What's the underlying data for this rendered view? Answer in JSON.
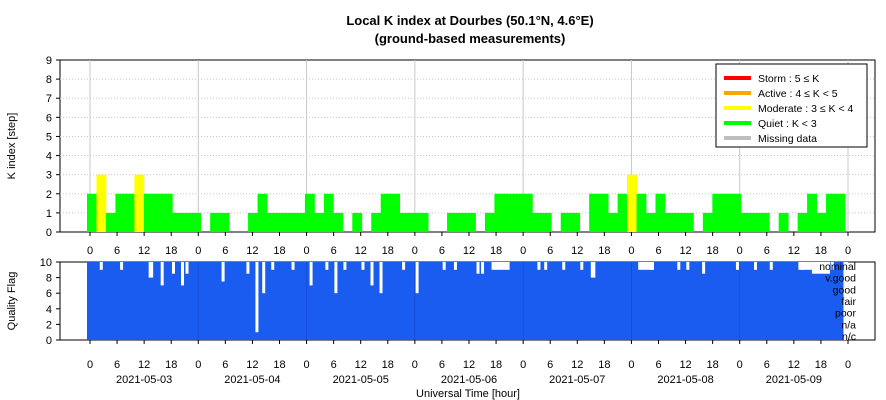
{
  "chart_data": [
    {
      "type": "bar",
      "title": "Local K index at Dourbes (50.1°N, 4.6°E)",
      "subtitle": "(ground-based measurements)",
      "ylabel": "K index [step]",
      "ylim": [
        0,
        9
      ],
      "yticks": [
        "0",
        "1",
        "2",
        "3",
        "4",
        "5",
        "6",
        "7",
        "8",
        "9"
      ],
      "grid": true,
      "legend_position": "top-right",
      "x_unit_hours": [
        0,
        168
      ],
      "legend": [
        {
          "label": "Storm : 5 ≤ K",
          "color": "#ff0000"
        },
        {
          "label": "Active : 4 ≤ K < 5",
          "color": "#ffa500"
        },
        {
          "label": "Moderate : 3 ≤ K < 4",
          "color": "#ffff00"
        },
        {
          "label": "Quiet : K < 3",
          "color": "#00ff00"
        },
        {
          "label": "Missing data",
          "color": "#bebebe"
        }
      ],
      "x_hour_ticks": [
        "0",
        "6",
        "12",
        "18",
        "0",
        "6",
        "12",
        "18",
        "0",
        "6",
        "12",
        "18",
        "0",
        "6",
        "12",
        "18",
        "0",
        "6",
        "12",
        "18",
        "0",
        "6",
        "12",
        "18",
        "0",
        "6",
        "12",
        "18",
        "0"
      ],
      "values": [
        2,
        3,
        1,
        2,
        2,
        3,
        2,
        2,
        2,
        1,
        1,
        1,
        0,
        1,
        1,
        0,
        0,
        1,
        2,
        1,
        1,
        1,
        1,
        2,
        1,
        2,
        1,
        0,
        1,
        0,
        1,
        2,
        2,
        1,
        1,
        1,
        0,
        0,
        1,
        1,
        1,
        0,
        1,
        2,
        2,
        2,
        2,
        1,
        1,
        0,
        1,
        1,
        0,
        2,
        2,
        1,
        2,
        3,
        2,
        1,
        2,
        1,
        1,
        1,
        0,
        1,
        2,
        2,
        2,
        1,
        1,
        1,
        0,
        1,
        0,
        1,
        2,
        1,
        2,
        2
      ],
      "step_hours": 2.1
    },
    {
      "type": "bar",
      "ylabel": "Quality Flag",
      "ylim": [
        0,
        10
      ],
      "yticks": [
        "0",
        "2",
        "4",
        "6",
        "8",
        "10"
      ],
      "xlabel": "Universal Time [hour]",
      "bar_color": "#1a5cf0",
      "quality_labels": [
        "nominal",
        "v.good",
        "good",
        "fair",
        "poor",
        "n/a",
        "n/c"
      ],
      "x_hour_ticks": [
        "0",
        "6",
        "12",
        "18",
        "0",
        "6",
        "12",
        "18",
        "0",
        "6",
        "12",
        "18",
        "0",
        "6",
        "12",
        "18",
        "0",
        "6",
        "12",
        "18",
        "0",
        "6",
        "12",
        "18",
        "0",
        "6",
        "12",
        "18",
        "0"
      ],
      "date_labels": [
        "2021-05-03",
        "2021-05-04",
        "2021-05-05",
        "2021-05-06",
        "2021-05-07",
        "2021-05-08",
        "2021-05-09"
      ],
      "dips": [
        {
          "hour": 2.5,
          "value": 9
        },
        {
          "hour": 7.0,
          "value": 9
        },
        {
          "hour": 13.5,
          "value": 8.5
        },
        {
          "hour": 16.0,
          "value": 7
        },
        {
          "hour": 18.5,
          "value": 8.5
        },
        {
          "hour": 20.5,
          "value": 7
        },
        {
          "hour": 21.5,
          "value": 8.5
        },
        {
          "hour": 29.5,
          "value": 7.5
        },
        {
          "hour": 35.0,
          "value": 8.5
        },
        {
          "hour": 37.0,
          "value": 1
        },
        {
          "hour": 38.5,
          "value": 6
        },
        {
          "hour": 40.5,
          "value": 9
        },
        {
          "hour": 45.0,
          "value": 9
        },
        {
          "hour": 49.0,
          "value": 7
        },
        {
          "hour": 52.5,
          "value": 9
        },
        {
          "hour": 54.5,
          "value": 6
        },
        {
          "hour": 56.5,
          "value": 9
        },
        {
          "hour": 60.5,
          "value": 9
        },
        {
          "hour": 62.5,
          "value": 7
        },
        {
          "hour": 64.5,
          "value": 6
        },
        {
          "hour": 69.5,
          "value": 9
        },
        {
          "hour": 72.5,
          "value": 6
        },
        {
          "hour": 78.5,
          "value": 9
        },
        {
          "hour": 81.0,
          "value": 9
        },
        {
          "hour": 86.0,
          "value": 8.5
        },
        {
          "hour": 87.0,
          "value": 8.5
        },
        {
          "hour": 99.5,
          "value": 9
        },
        {
          "hour": 101.0,
          "value": 9
        },
        {
          "hour": 105.0,
          "value": 9
        },
        {
          "hour": 109.0,
          "value": 9
        },
        {
          "hour": 124.5,
          "value": 9
        },
        {
          "hour": 130.5,
          "value": 9
        },
        {
          "hour": 132.5,
          "value": 9
        },
        {
          "hour": 136.0,
          "value": 8.5
        },
        {
          "hour": 143.5,
          "value": 9
        },
        {
          "hour": 147.5,
          "value": 9
        },
        {
          "hour": 151.0,
          "value": 9
        },
        {
          "hour": 158.0,
          "value": 9
        },
        {
          "hour": 164.5,
          "value": 9
        }
      ],
      "gaps": [
        {
          "from": 157.0,
          "to": 160.0,
          "value": 9
        },
        {
          "from": 89.0,
          "to": 93.0,
          "value": 9
        },
        {
          "from": 121.5,
          "to": 125.0,
          "value": 9
        },
        {
          "from": 13.0,
          "to": 14.0,
          "value": 8
        },
        {
          "from": 111.0,
          "to": 112.0,
          "value": 8
        },
        {
          "from": 160.0,
          "to": 164.0,
          "value": 8.5
        },
        {
          "from": 167.0,
          "to": 168.0,
          "value": 0
        }
      ]
    }
  ]
}
